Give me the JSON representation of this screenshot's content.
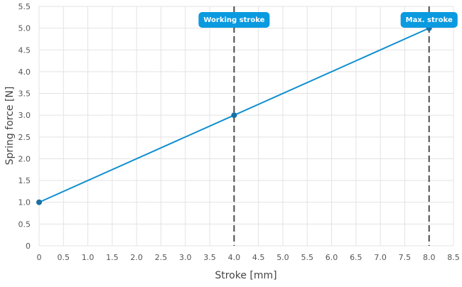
{
  "chart_data": {
    "type": "line",
    "title": "",
    "xlabel": "Stroke [mm]",
    "ylabel": "Spring force [N]",
    "xlim": [
      0,
      8.5
    ],
    "ylim": [
      0,
      5.5
    ],
    "x_ticks": [
      "0",
      "0.5",
      "1.0",
      "1.5",
      "2.0",
      "2.5",
      "3.0",
      "3.5",
      "4.0",
      "4.5",
      "5.0",
      "5.5",
      "6.0",
      "6.5",
      "7.0",
      "7.5",
      "8.0",
      "8.5"
    ],
    "x_tick_values": [
      0,
      0.5,
      1.0,
      1.5,
      2.0,
      2.5,
      3.0,
      3.5,
      4.0,
      4.5,
      5.0,
      5.5,
      6.0,
      6.5,
      7.0,
      7.5,
      8.0,
      8.5
    ],
    "y_ticks": [
      "0",
      "0.5",
      "1.0",
      "1.5",
      "2.0",
      "2.5",
      "3.0",
      "3.5",
      "4.0",
      "4.5",
      "5.0",
      "5.5"
    ],
    "y_tick_values": [
      0,
      0.5,
      1.0,
      1.5,
      2.0,
      2.5,
      3.0,
      3.5,
      4.0,
      4.5,
      5.0,
      5.5
    ],
    "grid": true,
    "series": [
      {
        "x": [
          0,
          4.0,
          8.0
        ],
        "y": [
          1.0,
          3.0,
          5.0
        ],
        "color": "#0f8fd0"
      }
    ],
    "markers": [
      {
        "x": 4.0,
        "label": "Working stroke"
      },
      {
        "x": 8.0,
        "label": "Max. stroke"
      }
    ],
    "colors": {
      "line": "#0f8fd0",
      "badge": "#0a9ae0",
      "marker_line": "#4a4a4a",
      "grid": "#e3e3e3"
    }
  }
}
